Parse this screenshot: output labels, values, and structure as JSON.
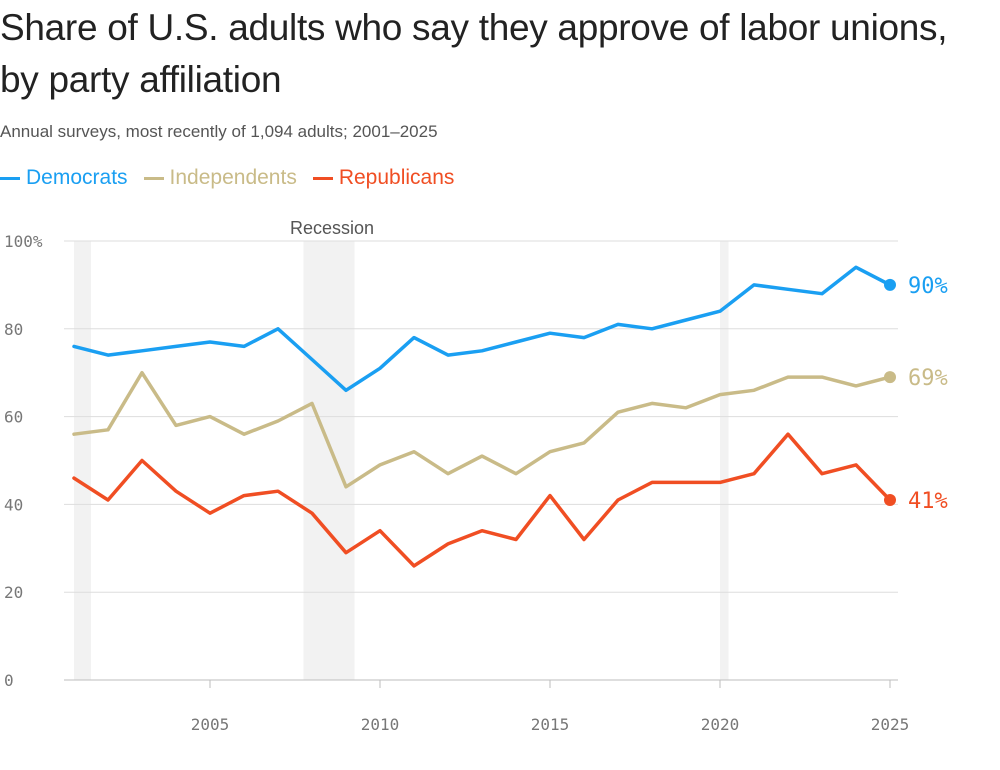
{
  "chart_data": {
    "type": "line",
    "title": "Share of U.S. adults who say they approve of labor unions, by party affiliation",
    "subtitle": "Annual surveys, most recently of 1,094 adults; 2001–2025",
    "xlabel": "",
    "ylabel": "",
    "xlim": [
      2001,
      2025
    ],
    "ylim": [
      0,
      100
    ],
    "x": [
      2001,
      2002,
      2003,
      2004,
      2005,
      2006,
      2007,
      2008,
      2009,
      2010,
      2011,
      2012,
      2013,
      2014,
      2015,
      2016,
      2017,
      2018,
      2019,
      2020,
      2021,
      2022,
      2023,
      2024,
      2025
    ],
    "y_ticks": [
      {
        "value": 0,
        "label": "0"
      },
      {
        "value": 20,
        "label": "20"
      },
      {
        "value": 40,
        "label": "40"
      },
      {
        "value": 60,
        "label": "60"
      },
      {
        "value": 80,
        "label": "80"
      },
      {
        "value": 100,
        "label": "100%"
      }
    ],
    "x_ticks": [
      {
        "value": 2005,
        "label": "2005"
      },
      {
        "value": 2010,
        "label": "2010"
      },
      {
        "value": 2015,
        "label": "2015"
      },
      {
        "value": 2020,
        "label": "2020"
      },
      {
        "value": 2025,
        "label": "2025"
      }
    ],
    "recessions": [
      {
        "start": 2001.0,
        "end": 2001.5
      },
      {
        "start": 2007.75,
        "end": 2009.25
      },
      {
        "start": 2020.0,
        "end": 2020.25
      }
    ],
    "recession_label": "Recession",
    "series": [
      {
        "key": "dem",
        "name": "Democrats",
        "color": "#1a9ff2",
        "end_label": "90%",
        "values": [
          76,
          74,
          75,
          76,
          77,
          76,
          80,
          73,
          66,
          71,
          78,
          74,
          75,
          77,
          79,
          78,
          81,
          80,
          82,
          84,
          90,
          89,
          88,
          94,
          90
        ]
      },
      {
        "key": "ind",
        "name": "Independents",
        "color": "#c9bb88",
        "end_label": "69%",
        "values": [
          56,
          57,
          70,
          58,
          60,
          56,
          59,
          63,
          44,
          49,
          52,
          47,
          51,
          47,
          52,
          54,
          61,
          63,
          62,
          65,
          66,
          69,
          69,
          67,
          69
        ]
      },
      {
        "key": "rep",
        "name": "Republicans",
        "color": "#f04e23",
        "end_label": "41%",
        "values": [
          46,
          41,
          50,
          43,
          38,
          42,
          43,
          38,
          29,
          34,
          26,
          31,
          34,
          32,
          42,
          32,
          41,
          45,
          45,
          45,
          47,
          56,
          47,
          49,
          41
        ]
      }
    ]
  }
}
